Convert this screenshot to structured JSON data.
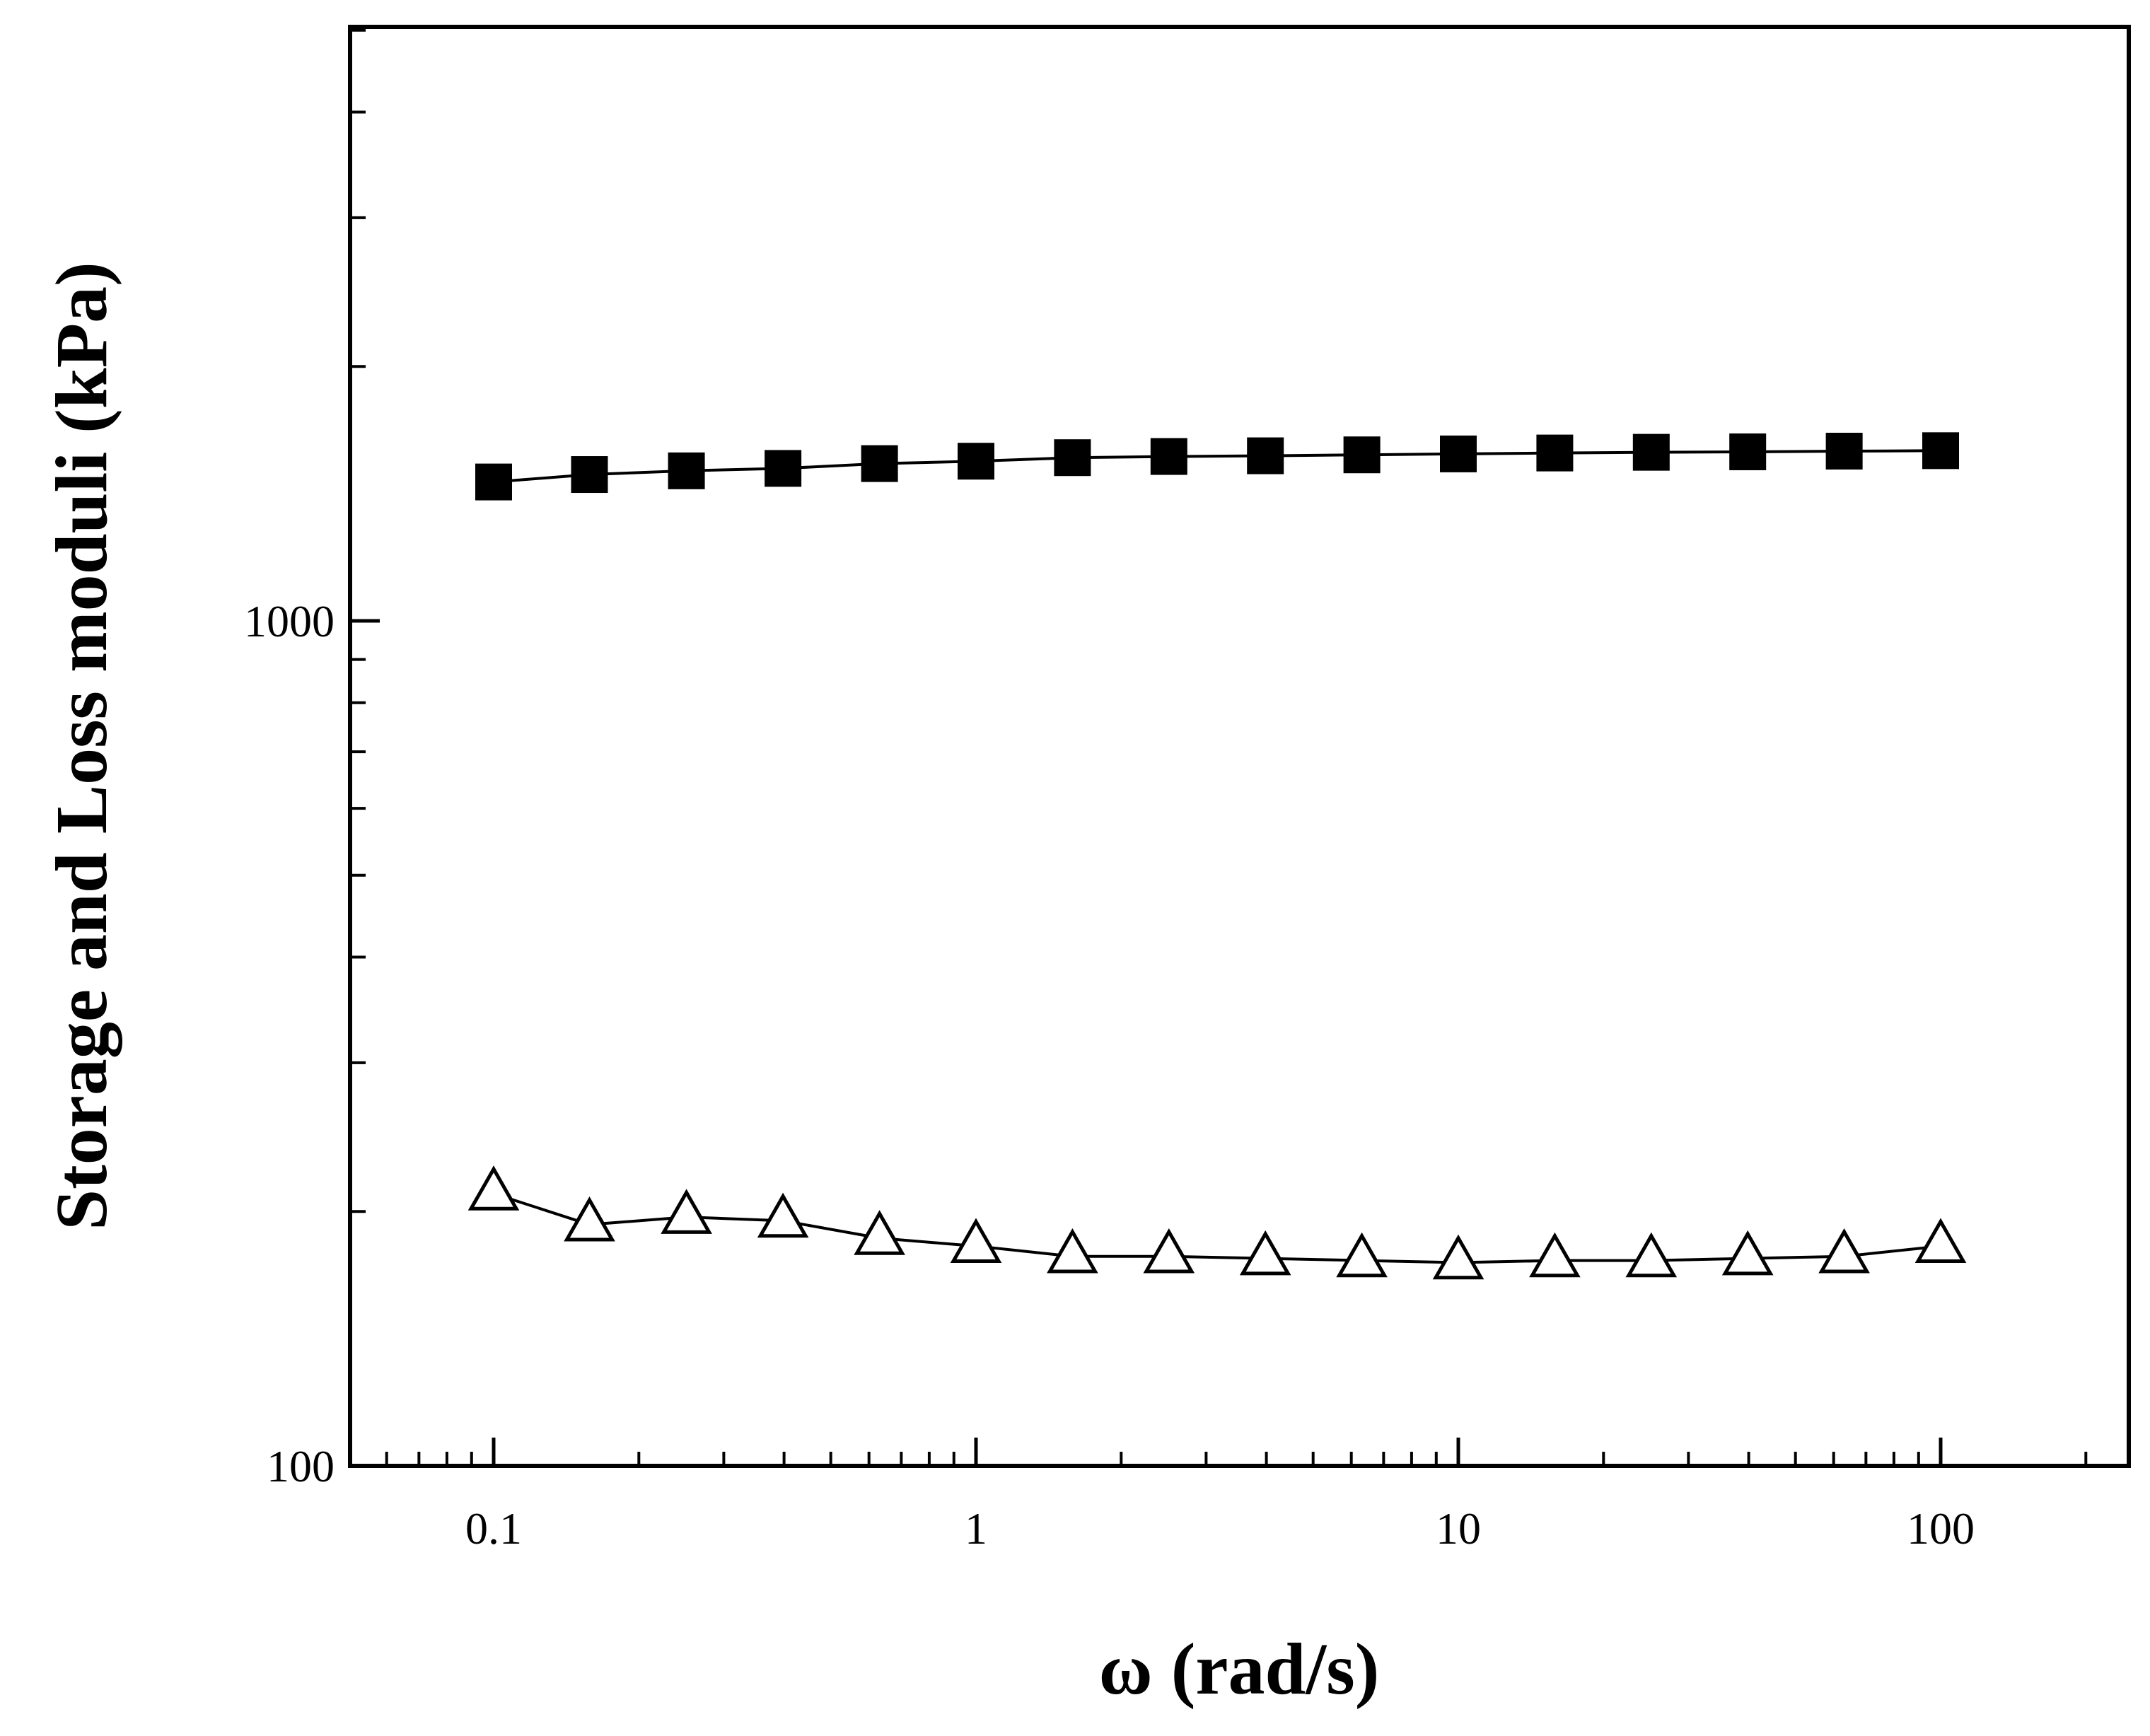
{
  "chart_data": {
    "type": "scatter",
    "xlabel": "ω (rad/s)",
    "ylabel": "Storage and Loss moduli (kPa)",
    "xscale": "log",
    "yscale": "log",
    "xlim": [
      0.05,
      250
    ],
    "ylim": [
      100,
      5000
    ],
    "grid": false,
    "legend": "none",
    "x_ticks": [
      {
        "value": 0.1,
        "label": "0.1"
      },
      {
        "value": 1,
        "label": "1"
      },
      {
        "value": 10,
        "label": "10"
      },
      {
        "value": 100,
        "label": "100"
      }
    ],
    "y_ticks": [
      {
        "value": 100,
        "label": "100"
      },
      {
        "value": 1000,
        "label": "1000"
      }
    ],
    "x": [
      0.1,
      0.158,
      0.251,
      0.398,
      0.631,
      1.0,
      1.585,
      2.512,
      3.981,
      6.31,
      10.0,
      15.85,
      25.12,
      39.81,
      63.1,
      100.0
    ],
    "series": [
      {
        "marker": "filled-square",
        "color": "#000000",
        "values": [
          1460,
          1490,
          1505,
          1515,
          1535,
          1545,
          1560,
          1565,
          1568,
          1572,
          1576,
          1580,
          1583,
          1585,
          1588,
          1590
        ]
      },
      {
        "marker": "open-triangle",
        "color": "#000000",
        "values": [
          210,
          193,
          197,
          195,
          186,
          182,
          177,
          177,
          176,
          175,
          174,
          175,
          175,
          176,
          177,
          182
        ]
      }
    ]
  }
}
